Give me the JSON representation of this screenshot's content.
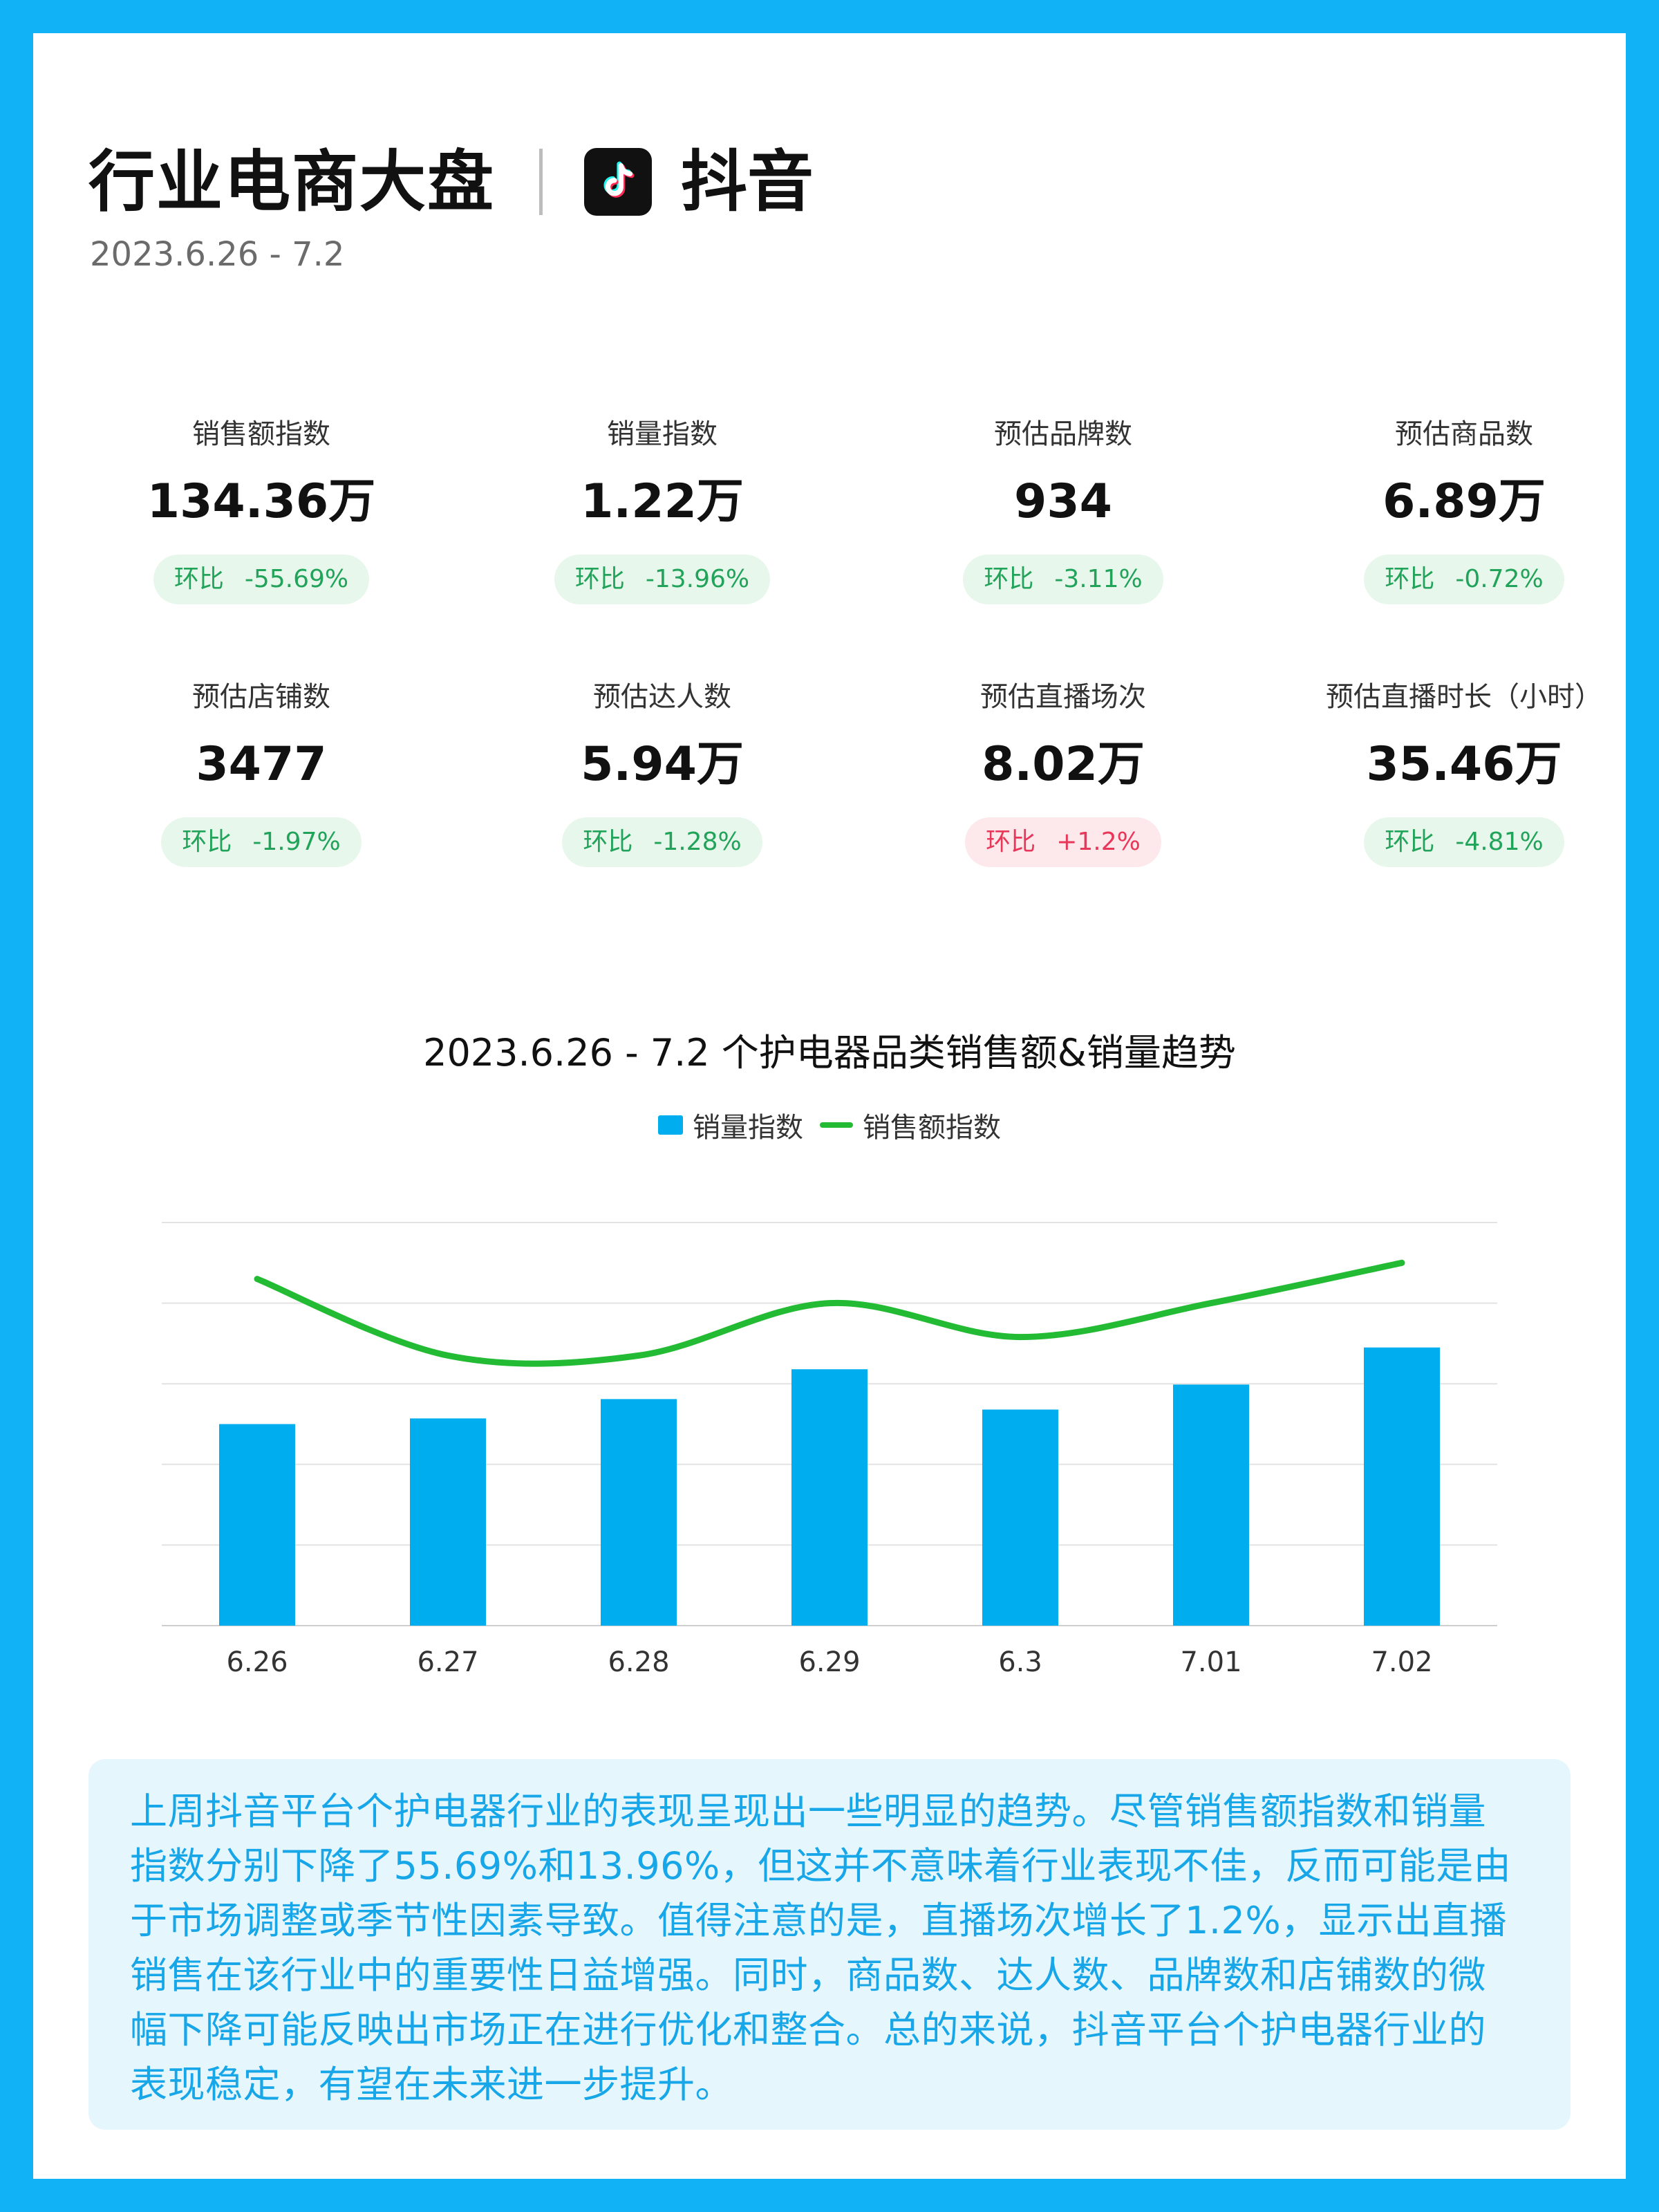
{
  "header": {
    "title": "行业电商大盘",
    "platform_name": "抖音",
    "platform_icon": "tiktok-logo-icon",
    "date_range": "2023.6.26 - 7.2"
  },
  "metrics": [
    {
      "label": "销售额指数",
      "value": "134.36万",
      "change_label": "环比",
      "change": "-55.69%",
      "trend": "down"
    },
    {
      "label": "销量指数",
      "value": "1.22万",
      "change_label": "环比",
      "change": "-13.96%",
      "trend": "down"
    },
    {
      "label": "预估品牌数",
      "value": "934",
      "change_label": "环比",
      "change": "-3.11%",
      "trend": "down"
    },
    {
      "label": "预估商品数",
      "value": "6.89万",
      "change_label": "环比",
      "change": "-0.72%",
      "trend": "down"
    },
    {
      "label": "预估店铺数",
      "value": "3477",
      "change_label": "环比",
      "change": "-1.97%",
      "trend": "down"
    },
    {
      "label": "预估达人数",
      "value": "5.94万",
      "change_label": "环比",
      "change": "-1.28%",
      "trend": "down"
    },
    {
      "label": "预估直播场次",
      "value": "8.02万",
      "change_label": "环比",
      "change": "+1.2%",
      "trend": "up"
    },
    {
      "label": "预估直播时长（小时）",
      "value": "35.46万",
      "change_label": "环比",
      "change": "-4.81%",
      "trend": "down"
    }
  ],
  "colors": {
    "background": "#12b3f6",
    "bar": "#00aef0",
    "line": "#22bb33",
    "down": "#22a35a",
    "up": "#e8385a",
    "summary_text": "#17a6e8"
  },
  "chart_data": {
    "type": "bar",
    "title": "2023.6.26 - 7.2 个护电器品类销售额&销量趋势",
    "categories": [
      "6.26",
      "6.27",
      "6.28",
      "6.29",
      "6.3",
      "7.01",
      "7.02"
    ],
    "series": [
      {
        "name": "销量指数",
        "type": "bar",
        "values": [
          2.5,
          2.57,
          2.81,
          3.18,
          2.68,
          2.99,
          3.45
        ]
      },
      {
        "name": "销售额指数",
        "type": "line",
        "values": [
          4.3,
          3.35,
          3.35,
          4.0,
          3.58,
          4.0,
          4.5
        ]
      }
    ],
    "ylim": [
      0,
      5
    ],
    "grid": true,
    "legend": "top-center",
    "y_tick_labels": false
  },
  "summary": {
    "lines": [
      "上周抖音平台个护电器行业的表现呈现出一些明显的趋势。尽管销售额指数和销量",
      "指数分别下降了55.69%和13.96%，但这并不意味着行业表现不佳，反而可能是由",
      "于市场调整或季节性因素导致。值得注意的是，直播场次增长了1.2%，显示出直播",
      "销售在该行业中的重要性日益增强。同时，商品数、达人数、品牌数和店铺数的微",
      "幅下降可能反映出市场正在进行优化和整合。总的来说，抖音平台个护电器行业的",
      "表现稳定，有望在未来进一步提升。"
    ]
  }
}
